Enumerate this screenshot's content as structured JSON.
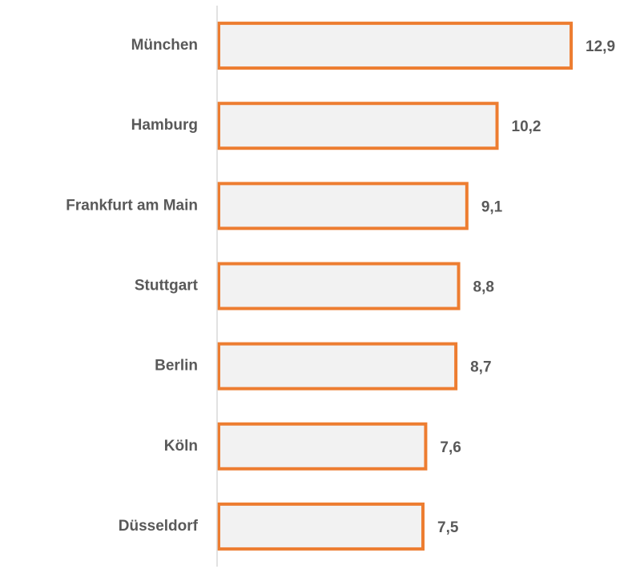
{
  "chart_data": {
    "type": "bar",
    "orientation": "horizontal",
    "categories": [
      "München",
      "Hamburg",
      "Frankfurt am Main",
      "Stuttgart",
      "Berlin",
      "Köln",
      "Düsseldorf"
    ],
    "values": [
      12.9,
      10.2,
      9.1,
      8.8,
      8.7,
      7.6,
      7.5
    ],
    "value_labels": [
      "12,9",
      "10,2",
      "9,1",
      "8,8",
      "8,7",
      "7,6",
      "7,5"
    ],
    "color": "#f2f2f2",
    "edge_color": "#ed7d31",
    "xlim": [
      0,
      15
    ],
    "grid": false
  }
}
